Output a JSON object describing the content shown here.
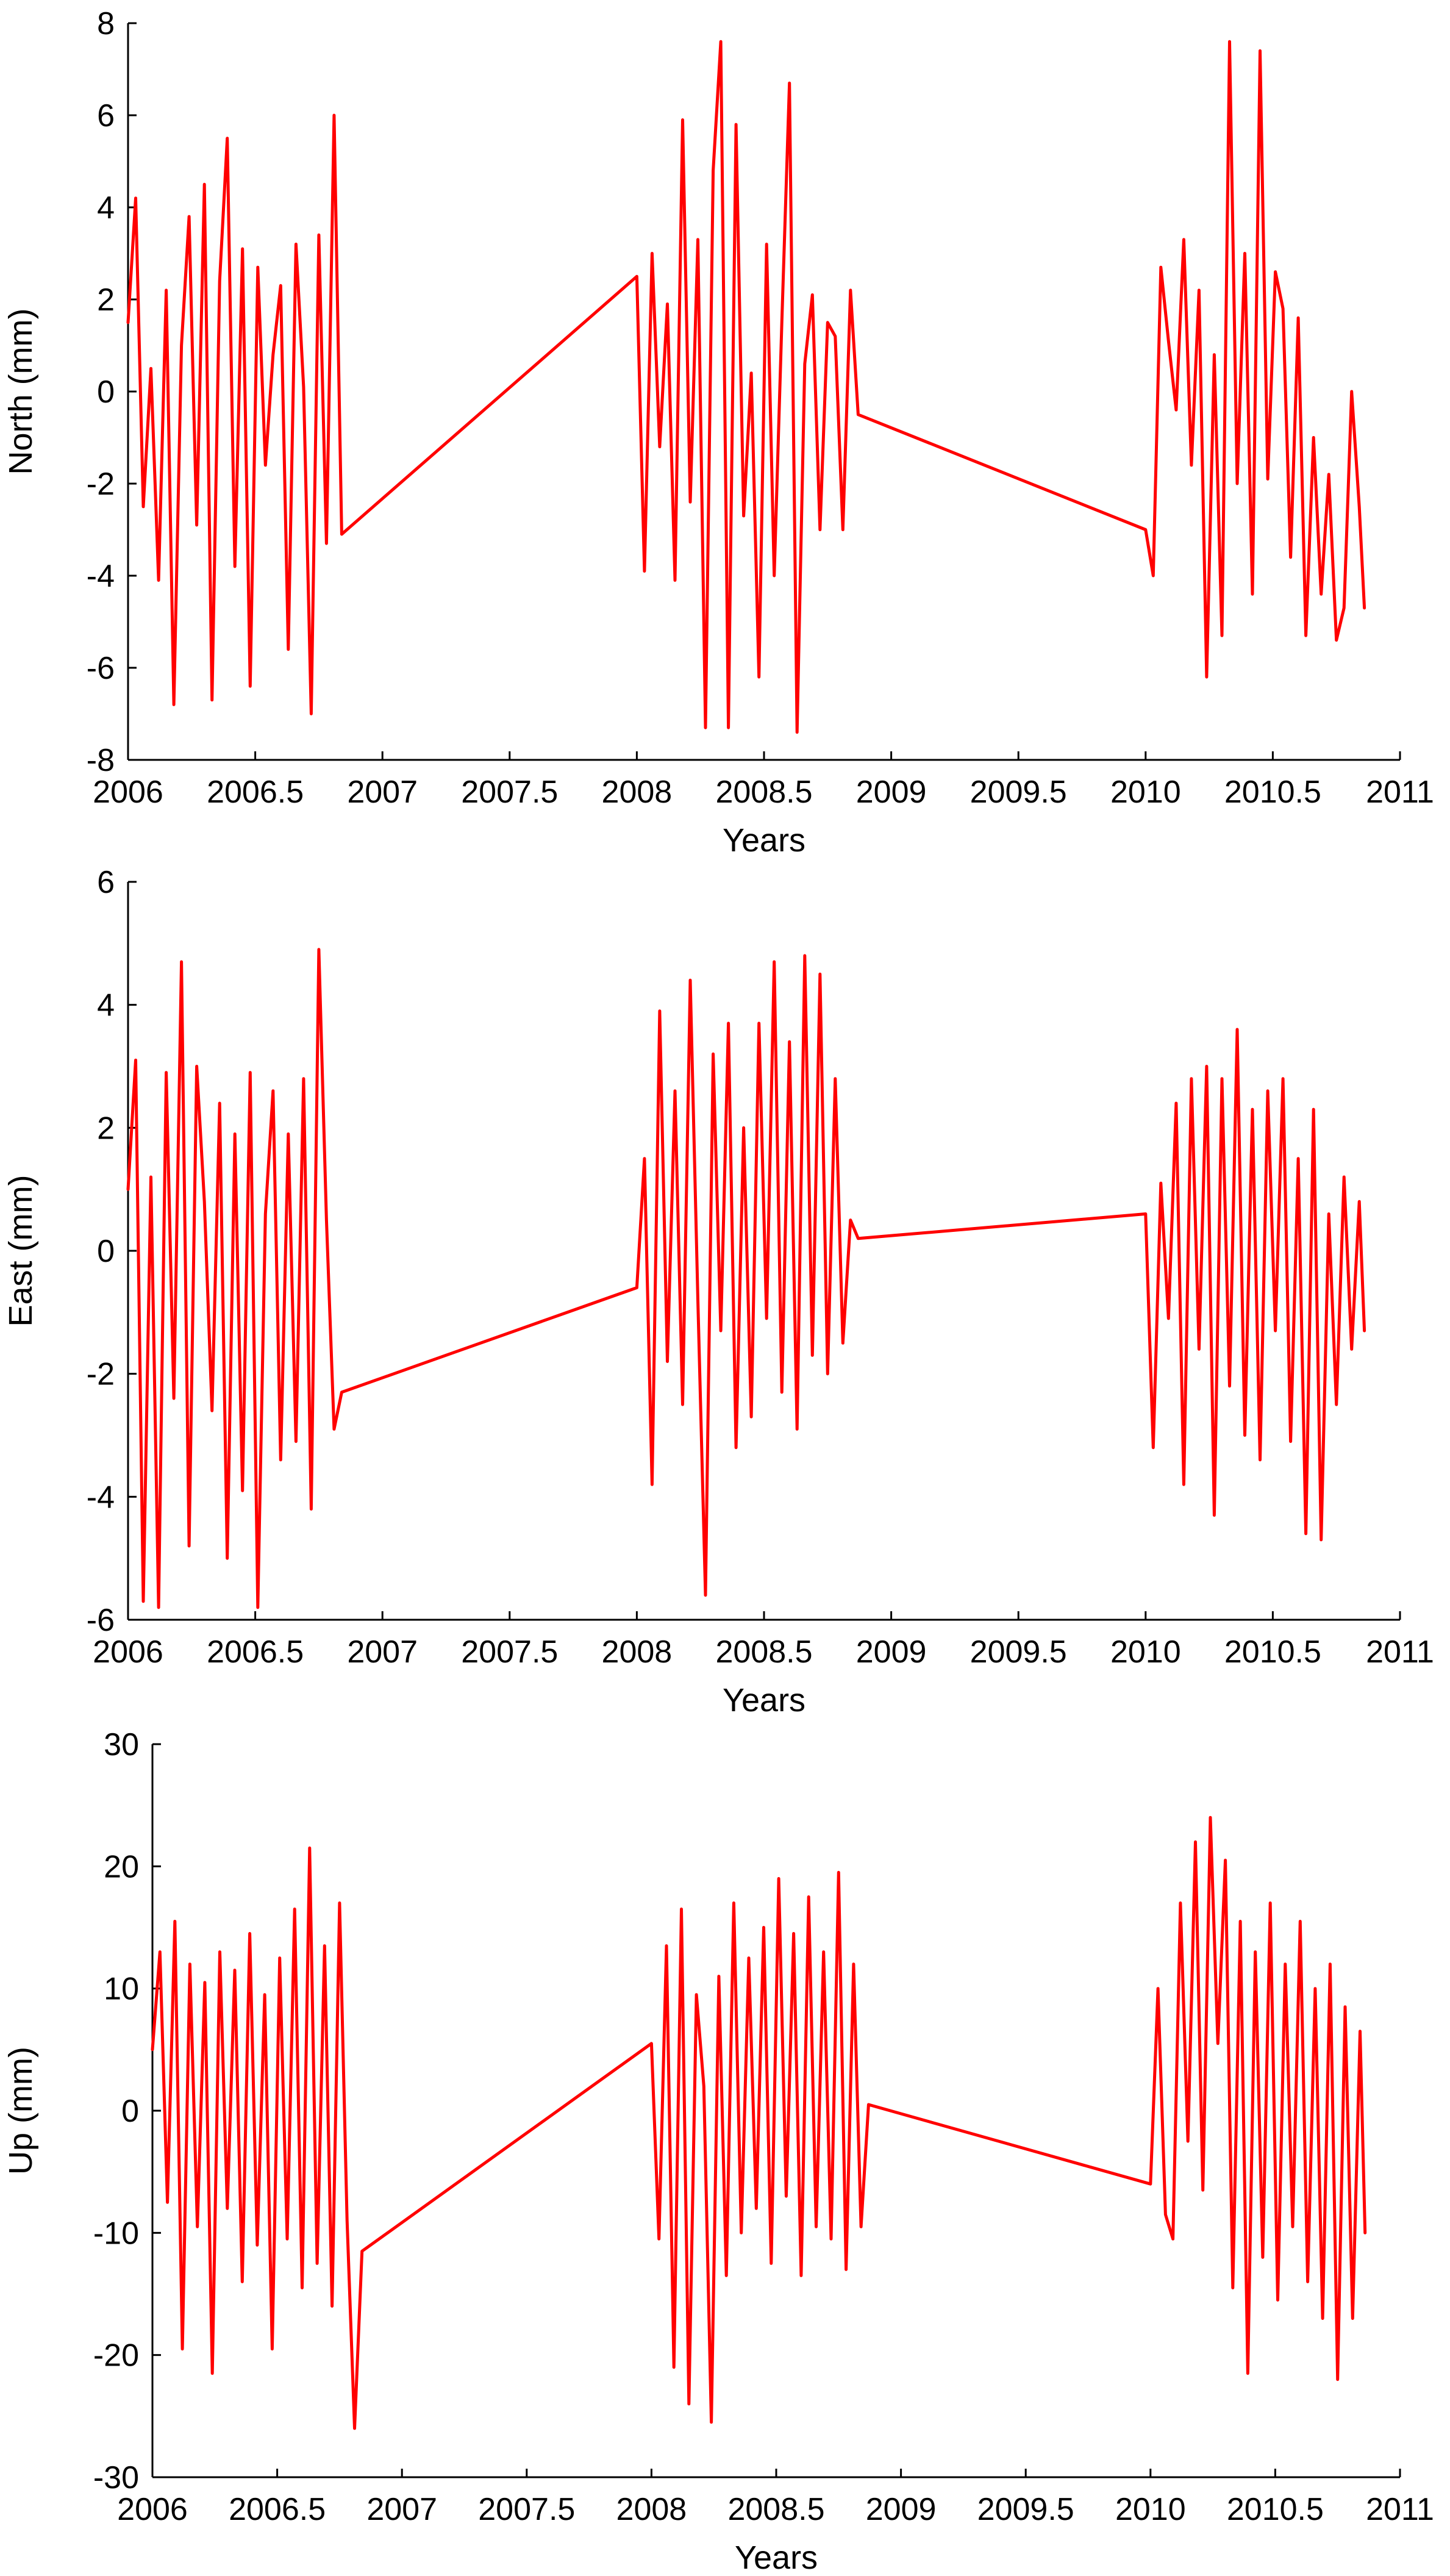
{
  "colors": {
    "series": "#ff0000",
    "axis": "#000000",
    "background": "#ffffff"
  },
  "chart_data": [
    {
      "type": "line",
      "title": "",
      "xlabel": "Years",
      "ylabel": "North (mm)",
      "xlim": [
        2006,
        2011
      ],
      "ylim": [
        -8,
        8
      ],
      "xticks": [
        2006,
        2006.5,
        2007,
        2007.5,
        2008,
        2008.5,
        2009,
        2009.5,
        2010,
        2010.5,
        2011
      ],
      "xtick_labels": [
        "2006",
        "2006.5",
        "2007",
        "2007.5",
        "2008",
        "2008.5",
        "2009",
        "2009.5",
        "2010",
        "2010.5",
        "2011"
      ],
      "yticks": [
        -8,
        -6,
        -4,
        -2,
        0,
        2,
        4,
        6,
        8
      ],
      "ytick_labels": [
        "-8",
        "-6",
        "-4",
        "-2",
        "0",
        "2",
        "4",
        "6",
        "8"
      ],
      "grid": false,
      "series": [
        {
          "color": "#ff0000",
          "x": [
            2006.0,
            2006.03,
            2006.06,
            2006.09,
            2006.12,
            2006.15,
            2006.18,
            2006.21,
            2006.24,
            2006.27,
            2006.3,
            2006.33,
            2006.36,
            2006.39,
            2006.42,
            2006.45,
            2006.48,
            2006.51,
            2006.54,
            2006.57,
            2006.6,
            2006.63,
            2006.66,
            2006.69,
            2006.72,
            2006.75,
            2006.78,
            2006.81,
            2006.84,
            2008.0,
            2008.03,
            2008.06,
            2008.09,
            2008.12,
            2008.15,
            2008.18,
            2008.21,
            2008.24,
            2008.27,
            2008.3,
            2008.33,
            2008.36,
            2008.39,
            2008.42,
            2008.45,
            2008.48,
            2008.51,
            2008.54,
            2008.57,
            2008.6,
            2008.63,
            2008.66,
            2008.69,
            2008.72,
            2008.75,
            2008.78,
            2008.81,
            2008.84,
            2008.87,
            2010.0,
            2010.03,
            2010.06,
            2010.09,
            2010.12,
            2010.15,
            2010.18,
            2010.21,
            2010.24,
            2010.27,
            2010.3,
            2010.33,
            2010.36,
            2010.39,
            2010.42,
            2010.45,
            2010.48,
            2010.51,
            2010.54,
            2010.57,
            2010.6,
            2010.63,
            2010.66,
            2010.69,
            2010.72,
            2010.75,
            2010.78,
            2010.81,
            2010.84,
            2010.86
          ],
          "y": [
            1.5,
            4.2,
            -2.5,
            0.5,
            -4.1,
            2.2,
            -6.8,
            1.0,
            3.8,
            -2.9,
            4.5,
            -6.7,
            2.4,
            5.5,
            -3.8,
            3.1,
            -6.4,
            2.7,
            -1.6,
            0.8,
            2.3,
            -5.6,
            3.2,
            0.1,
            -7.0,
            3.4,
            -3.3,
            6.0,
            -3.1,
            2.5,
            -3.9,
            3.0,
            -1.2,
            1.9,
            -4.1,
            5.9,
            -2.4,
            3.3,
            -7.3,
            4.8,
            7.6,
            -7.3,
            5.8,
            -2.7,
            0.4,
            -6.2,
            3.2,
            -4.0,
            1.5,
            6.7,
            -7.4,
            0.6,
            2.1,
            -3.0,
            1.5,
            1.2,
            -3.0,
            2.2,
            -0.5,
            -3.0,
            -4.0,
            2.7,
            1.1,
            -0.4,
            3.3,
            -1.6,
            2.2,
            -6.2,
            0.8,
            -5.3,
            7.6,
            -2.0,
            3.0,
            -4.4,
            7.4,
            -1.9,
            2.6,
            1.8,
            -3.6,
            1.6,
            -5.3,
            -1.0,
            -4.4,
            -1.8,
            -5.4,
            -4.7,
            0.0,
            -2.5,
            -4.7
          ]
        }
      ]
    },
    {
      "type": "line",
      "title": "",
      "xlabel": "Years",
      "ylabel": "East (mm)",
      "xlim": [
        2006,
        2011
      ],
      "ylim": [
        -6,
        6
      ],
      "xticks": [
        2006,
        2006.5,
        2007,
        2007.5,
        2008,
        2008.5,
        2009,
        2009.5,
        2010,
        2010.5,
        2011
      ],
      "xtick_labels": [
        "2006",
        "2006.5",
        "2007",
        "2007.5",
        "2008",
        "2008.5",
        "2009",
        "2009.5",
        "2010",
        "2010.5",
        "2011"
      ],
      "yticks": [
        -6,
        -4,
        -2,
        0,
        2,
        4,
        6
      ],
      "ytick_labels": [
        "-6",
        "-4",
        "-2",
        "0",
        "2",
        "4",
        "6"
      ],
      "grid": false,
      "series": [
        {
          "color": "#ff0000",
          "x": [
            2006.0,
            2006.03,
            2006.06,
            2006.09,
            2006.12,
            2006.15,
            2006.18,
            2006.21,
            2006.24,
            2006.27,
            2006.3,
            2006.33,
            2006.36,
            2006.39,
            2006.42,
            2006.45,
            2006.48,
            2006.51,
            2006.54,
            2006.57,
            2006.6,
            2006.63,
            2006.66,
            2006.69,
            2006.72,
            2006.75,
            2006.78,
            2006.81,
            2006.84,
            2008.0,
            2008.03,
            2008.06,
            2008.09,
            2008.12,
            2008.15,
            2008.18,
            2008.21,
            2008.24,
            2008.27,
            2008.3,
            2008.33,
            2008.36,
            2008.39,
            2008.42,
            2008.45,
            2008.48,
            2008.51,
            2008.54,
            2008.57,
            2008.6,
            2008.63,
            2008.66,
            2008.69,
            2008.72,
            2008.75,
            2008.78,
            2008.81,
            2008.84,
            2008.87,
            2010.0,
            2010.03,
            2010.06,
            2010.09,
            2010.12,
            2010.15,
            2010.18,
            2010.21,
            2010.24,
            2010.27,
            2010.3,
            2010.33,
            2010.36,
            2010.39,
            2010.42,
            2010.45,
            2010.48,
            2010.51,
            2010.54,
            2010.57,
            2010.6,
            2010.63,
            2010.66,
            2010.69,
            2010.72,
            2010.75,
            2010.78,
            2010.81,
            2010.84,
            2010.86
          ],
          "y": [
            1.0,
            3.1,
            -5.7,
            1.2,
            -5.8,
            2.9,
            -2.4,
            4.7,
            -4.8,
            3.0,
            0.8,
            -2.6,
            2.4,
            -5.0,
            1.9,
            -3.9,
            2.9,
            -5.8,
            0.6,
            2.6,
            -3.4,
            1.9,
            -3.1,
            2.8,
            -4.2,
            4.9,
            0.5,
            -2.9,
            -2.3,
            -0.6,
            1.5,
            -3.8,
            3.9,
            -1.8,
            2.6,
            -2.5,
            4.4,
            -0.8,
            -5.6,
            3.2,
            -1.3,
            3.7,
            -3.2,
            2.0,
            -2.7,
            3.7,
            -1.1,
            4.7,
            -2.3,
            3.4,
            -2.9,
            4.8,
            -1.7,
            4.5,
            -2.0,
            2.8,
            -1.5,
            0.5,
            0.2,
            0.6,
            -3.2,
            1.1,
            -1.1,
            2.4,
            -3.8,
            2.8,
            -1.6,
            3.0,
            -4.3,
            2.8,
            -2.2,
            3.6,
            -3.0,
            2.3,
            -3.4,
            2.6,
            -1.3,
            2.8,
            -3.1,
            1.5,
            -4.6,
            2.3,
            -4.7,
            0.6,
            -2.5,
            1.2,
            -1.6,
            0.8,
            -1.3
          ]
        }
      ]
    },
    {
      "type": "line",
      "title": "",
      "xlabel": "Years",
      "ylabel": "Up (mm)",
      "xlim": [
        2006,
        2011
      ],
      "ylim": [
        -30,
        30
      ],
      "xticks": [
        2006,
        2006.5,
        2007,
        2007.5,
        2008,
        2008.5,
        2009,
        2009.5,
        2010,
        2010.5,
        2011
      ],
      "xtick_labels": [
        "2006",
        "2006.5",
        "2007",
        "2007.5",
        "2008",
        "2008.5",
        "2009",
        "2009.5",
        "2010",
        "2010.5",
        "2011"
      ],
      "yticks": [
        -30,
        -20,
        -10,
        0,
        10,
        20,
        30
      ],
      "ytick_labels": [
        "-30",
        "-20",
        "-10",
        "0",
        "10",
        "20",
        "30"
      ],
      "grid": false,
      "series": [
        {
          "color": "#ff0000",
          "x": [
            2006.0,
            2006.03,
            2006.06,
            2006.09,
            2006.12,
            2006.15,
            2006.18,
            2006.21,
            2006.24,
            2006.27,
            2006.3,
            2006.33,
            2006.36,
            2006.39,
            2006.42,
            2006.45,
            2006.48,
            2006.51,
            2006.54,
            2006.57,
            2006.6,
            2006.63,
            2006.66,
            2006.69,
            2006.72,
            2006.75,
            2006.78,
            2006.81,
            2006.84,
            2008.0,
            2008.03,
            2008.06,
            2008.09,
            2008.12,
            2008.15,
            2008.18,
            2008.21,
            2008.24,
            2008.27,
            2008.3,
            2008.33,
            2008.36,
            2008.39,
            2008.42,
            2008.45,
            2008.48,
            2008.51,
            2008.54,
            2008.57,
            2008.6,
            2008.63,
            2008.66,
            2008.69,
            2008.72,
            2008.75,
            2008.78,
            2008.81,
            2008.84,
            2008.87,
            2010.0,
            2010.03,
            2010.06,
            2010.09,
            2010.12,
            2010.15,
            2010.18,
            2010.21,
            2010.24,
            2010.27,
            2010.3,
            2010.33,
            2010.36,
            2010.39,
            2010.42,
            2010.45,
            2010.48,
            2010.51,
            2010.54,
            2010.57,
            2010.6,
            2010.63,
            2010.66,
            2010.69,
            2010.72,
            2010.75,
            2010.78,
            2010.81,
            2010.84,
            2010.86
          ],
          "y": [
            5.0,
            13.0,
            -7.5,
            15.5,
            -19.5,
            12.0,
            -9.5,
            10.5,
            -21.5,
            13.0,
            -8.0,
            11.5,
            -14.0,
            14.5,
            -11.0,
            9.5,
            -19.5,
            12.5,
            -10.5,
            16.5,
            -14.5,
            21.5,
            -12.5,
            13.5,
            -16.0,
            17.0,
            -9.0,
            -26.0,
            -11.5,
            5.5,
            -10.5,
            13.5,
            -21.0,
            16.5,
            -24.0,
            9.5,
            2.0,
            -25.5,
            11.0,
            -13.5,
            17.0,
            -10.0,
            12.5,
            -8.0,
            15.0,
            -12.5,
            19.0,
            -7.0,
            14.5,
            -13.5,
            17.5,
            -9.5,
            13.0,
            -10.5,
            19.5,
            -13.0,
            12.0,
            -9.5,
            0.5,
            -6.0,
            10.0,
            -8.5,
            -10.5,
            17.0,
            -2.5,
            22.0,
            -6.5,
            24.0,
            5.5,
            20.5,
            -14.5,
            15.5,
            -21.5,
            13.0,
            -12.0,
            17.0,
            -15.5,
            12.0,
            -9.5,
            15.5,
            -14.0,
            10.0,
            -17.0,
            12.0,
            -22.0,
            8.5,
            -17.0,
            6.5,
            -10.0
          ]
        }
      ]
    }
  ]
}
